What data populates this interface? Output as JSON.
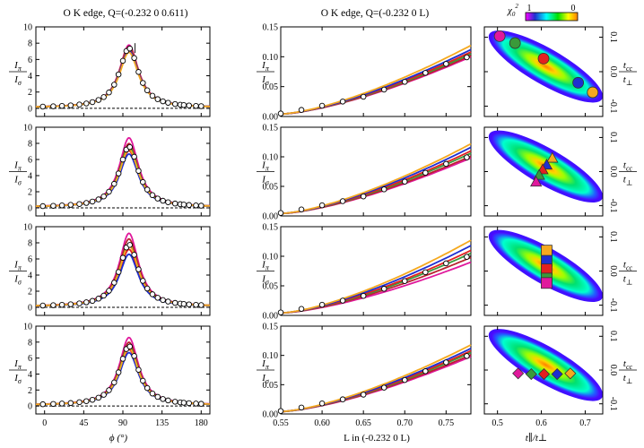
{
  "colors": {
    "magenta": "#e0189c",
    "darkred": "#b8232e",
    "green": "#3a9a3a",
    "red": "#e32020",
    "blue": "#1e2fd0",
    "orange": "#f5a91f",
    "gray": "#555555",
    "open_marker_fill": "#ffffff"
  },
  "titles": {
    "left": "O K edge, Q=(-0.232 0 0.611)",
    "middle": "O K edge, Q=(-0.232 0 L)"
  },
  "labels": {
    "ratio_top": "I",
    "ratio_top_sub": "π",
    "ratio_bottom": "I",
    "ratio_bottom_sub": "σ",
    "right_top": "t",
    "right_top_sub": "cc",
    "right_bottom": "t",
    "right_bottom_sub": "⊥",
    "xlabel_left": "ϕ (°)",
    "xlabel_middle": "L in (-0.232 0 L)",
    "xlabel_right": "t∥/t⊥",
    "colorbar_label": "χ",
    "colorbar_label_sub": "0",
    "colorbar_label_sup": "2",
    "colorbar_min": "1",
    "colorbar_max": "0"
  },
  "chart_data": [
    {
      "type": "line",
      "panel": "phi-dependence (4 rows)",
      "xlabel": "ϕ (°)",
      "ylabel": "Iπ/Iσ",
      "xlim": [
        -10,
        190
      ],
      "ylim": [
        -1,
        10
      ],
      "xticks": [
        0,
        45,
        90,
        135,
        180
      ],
      "yticks": [
        0,
        2,
        4,
        6,
        8,
        10
      ],
      "model": "lorentzian peak centered at ϕ≈97°, one curve per parameter set",
      "peak_heights_by_row": [
        [
          7.7,
          7.5,
          7.3,
          7.2,
          7.0,
          6.8
        ],
        [
          8.6,
          7.9,
          7.5,
          7.0,
          6.6,
          7.2
        ],
        [
          9.1,
          8.4,
          7.7,
          7.1,
          6.5,
          7.6
        ],
        [
          8.5,
          7.9,
          7.4,
          7.0,
          6.6,
          7.2
        ]
      ],
      "series_order": [
        "magenta",
        "darkred",
        "green",
        "red",
        "blue",
        "orange"
      ],
      "measured_phi": [
        -2,
        10,
        20,
        30,
        40,
        48,
        55,
        62,
        68,
        74,
        80,
        85,
        90,
        94,
        98,
        103,
        108,
        113,
        118,
        124,
        130,
        136,
        142,
        150,
        156,
        160,
        166,
        174,
        180
      ],
      "dashed_baseline": 0
    },
    {
      "type": "line",
      "panel": "L-dependence (4 rows)",
      "xlabel": "L in (-0.232 0 L)",
      "ylabel": "Iπ/Iσ",
      "xlim": [
        0.55,
        0.78
      ],
      "ylim": [
        0.0,
        0.15
      ],
      "xticks": [
        0.55,
        0.6,
        0.65,
        0.7,
        0.75
      ],
      "yticks": [
        0.0,
        0.05,
        0.1,
        0.15
      ],
      "measured_points": {
        "L": [
          0.55,
          0.575,
          0.6,
          0.625,
          0.65,
          0.675,
          0.7,
          0.725,
          0.75,
          0.775
        ],
        "value": [
          0.005,
          0.011,
          0.018,
          0.025,
          0.033,
          0.045,
          0.058,
          0.073,
          0.088,
          0.099
        ]
      },
      "end_values_by_row": [
        [
          0.1,
          0.102,
          0.105,
          0.108,
          0.112,
          0.119
        ],
        [
          0.098,
          0.101,
          0.106,
          0.11,
          0.116,
          0.122
        ],
        [
          0.09,
          0.098,
          0.105,
          0.11,
          0.118,
          0.127
        ],
        [
          0.098,
          0.101,
          0.105,
          0.108,
          0.112,
          0.118
        ]
      ]
    },
    {
      "type": "heatmap",
      "panel": "chi-squared maps (4 rows)",
      "xlabel": "t∥/t⊥",
      "ylabel": "tcc/t⊥",
      "xlim": [
        0.47,
        0.74
      ],
      "ylim": [
        -0.13,
        0.13
      ],
      "xticks": [
        0.5,
        0.6,
        0.7
      ],
      "yticks": [
        -0.1,
        0.0,
        0.1
      ],
      "colorbar": {
        "label": "χ0²",
        "min": "1",
        "max": "0"
      },
      "markers_by_row": [
        {
          "shape": "circle",
          "points": [
            {
              "color": "magenta",
              "x": 0.505,
              "y": 0.103
            },
            {
              "color": "green",
              "x": 0.54,
              "y": 0.083
            },
            {
              "color": "red",
              "x": 0.605,
              "y": 0.038
            },
            {
              "color": "blue",
              "x": 0.684,
              "y": -0.032
            },
            {
              "color": "orange",
              "x": 0.717,
              "y": -0.06
            }
          ]
        },
        {
          "shape": "triangle",
          "points": [
            {
              "color": "orange",
              "x": 0.625,
              "y": 0.04
            },
            {
              "color": "blue",
              "x": 0.612,
              "y": 0.02
            },
            {
              "color": "red",
              "x": 0.603,
              "y": 0.006
            },
            {
              "color": "green",
              "x": 0.595,
              "y": -0.01
            },
            {
              "color": "magenta",
              "x": 0.588,
              "y": -0.03
            }
          ]
        },
        {
          "shape": "square",
          "points": [
            {
              "color": "orange",
              "x": 0.612,
              "y": 0.06
            },
            {
              "color": "blue",
              "x": 0.612,
              "y": 0.03
            },
            {
              "color": "red",
              "x": 0.612,
              "y": 0.005
            },
            {
              "color": "green",
              "x": 0.612,
              "y": -0.022
            },
            {
              "color": "magenta",
              "x": 0.612,
              "y": -0.035
            }
          ]
        },
        {
          "shape": "diamond",
          "points": [
            {
              "color": "magenta",
              "x": 0.547,
              "y": -0.01
            },
            {
              "color": "green",
              "x": 0.577,
              "y": -0.012
            },
            {
              "color": "red",
              "x": 0.606,
              "y": -0.012
            },
            {
              "color": "blue",
              "x": 0.636,
              "y": -0.012
            },
            {
              "color": "orange",
              "x": 0.666,
              "y": -0.01
            }
          ]
        }
      ]
    }
  ]
}
